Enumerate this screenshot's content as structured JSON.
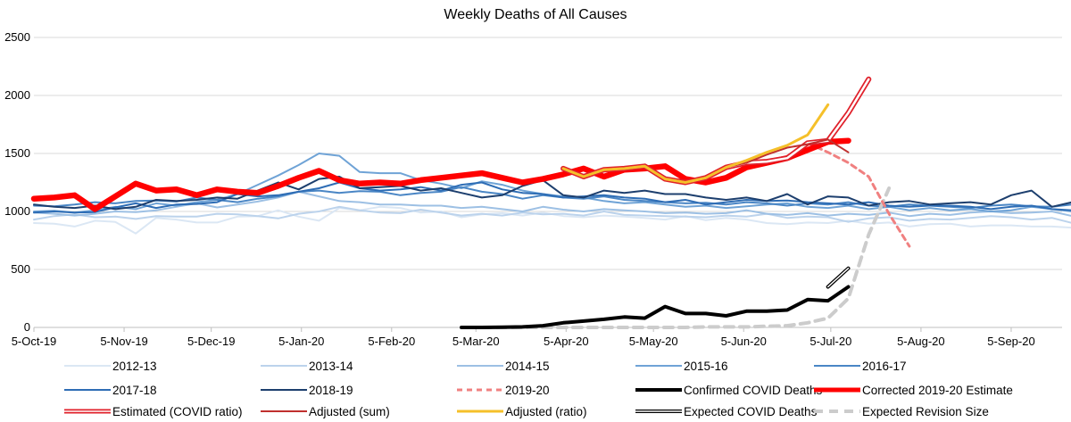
{
  "chart_data": {
    "type": "line",
    "title": "Weekly Deaths of All Causes",
    "xlabel": "",
    "ylabel": "",
    "ylim": [
      0,
      2500
    ],
    "yticks": [
      0,
      500,
      1000,
      1500,
      2000,
      2500
    ],
    "x_tick_labels": [
      "5-Oct-19",
      "5-Nov-19",
      "5-Dec-19",
      "5-Jan-20",
      "5-Feb-20",
      "5-Mar-20",
      "5-Apr-20",
      "5-May-20",
      "5-Jun-20",
      "5-Jul-20",
      "5-Aug-20",
      "5-Sep-20"
    ],
    "x_tick_weeks": [
      0,
      4.43,
      8.71,
      13.14,
      17.57,
      21.71,
      26.14,
      30.43,
      34.86,
      39.14,
      43.57,
      48
    ],
    "grid": "horizontal",
    "legend_position": "bottom",
    "series": [
      {
        "name": "2012-13",
        "color": "#dbe7f4",
        "dash": "solid",
        "width": 2,
        "start_week": 0,
        "values": [
          900,
          895,
          870,
          920,
          910,
          810,
          945,
          930,
          905,
          905,
          955,
          960,
          1010,
          955,
          920,
          1030,
          1010,
          1040,
          1030,
          990,
          1000,
          950,
          975,
          985,
          965,
          990,
          960,
          950,
          965,
          955,
          945,
          930,
          960,
          925,
          945,
          930,
          900,
          890,
          905,
          900,
          920,
          895,
          905,
          870,
          890,
          895,
          870,
          880,
          880,
          870,
          870,
          860
        ]
      },
      {
        "name": "2013-14",
        "color": "#bcd3ec",
        "dash": "solid",
        "width": 2,
        "start_week": 0,
        "values": [
          930,
          960,
          975,
          950,
          955,
          935,
          960,
          955,
          955,
          980,
          975,
          960,
          940,
          980,
          1000,
          1040,
          1010,
          990,
          985,
          1015,
          990,
          965,
          980,
          965,
          990,
          975,
          980,
          965,
          1000,
          970,
          965,
          960,
          955,
          950,
          965,
          955,
          980,
          945,
          955,
          950,
          910,
          940,
          950,
          920,
          935,
          930,
          945,
          960,
          950,
          930,
          945,
          900
        ]
      },
      {
        "name": "2014-15",
        "color": "#9dc0e4",
        "dash": "solid",
        "width": 2,
        "start_week": 0,
        "values": [
          990,
          980,
          965,
          980,
          1000,
          995,
          1010,
          1040,
          1070,
          1035,
          1060,
          1085,
          1120,
          1170,
          1130,
          1090,
          1080,
          1060,
          1060,
          1050,
          1050,
          1030,
          1040,
          1020,
          1000,
          1040,
          1015,
          1000,
          1020,
          1010,
          1000,
          985,
          990,
          980,
          985,
          1010,
          980,
          970,
          985,
          965,
          980,
          970,
          990,
          960,
          980,
          970,
          990,
          1000,
          985,
          990,
          1000,
          960
        ]
      },
      {
        "name": "2015-16",
        "color": "#6fa3d6",
        "dash": "solid",
        "width": 2,
        "start_week": 0,
        "values": [
          1000,
          1005,
          990,
          1010,
          1040,
          1020,
          1070,
          1050,
          1080,
          1100,
          1150,
          1230,
          1310,
          1400,
          1500,
          1480,
          1340,
          1330,
          1330,
          1270,
          1240,
          1200,
          1260,
          1230,
          1180,
          1150,
          1130,
          1120,
          1090,
          1070,
          1080,
          1060,
          1040,
          1050,
          1030,
          1045,
          1060,
          1070,
          1040,
          1030,
          1050,
          1020,
          1040,
          1010,
          1030,
          1010,
          1020,
          1000,
          1010,
          1040,
          1020,
          1000
        ]
      },
      {
        "name": "2016-17",
        "color": "#4a86c5",
        "dash": "solid",
        "width": 2,
        "start_week": 0,
        "values": [
          1050,
          1045,
          1060,
          1080,
          1070,
          1090,
          1095,
          1085,
          1120,
          1100,
          1080,
          1110,
          1130,
          1170,
          1180,
          1160,
          1175,
          1170,
          1140,
          1160,
          1170,
          1210,
          1170,
          1150,
          1110,
          1140,
          1120,
          1110,
          1130,
          1100,
          1090,
          1080,
          1070,
          1075,
          1060,
          1080,
          1070,
          1050,
          1070,
          1060,
          1080,
          1050,
          1040,
          1060,
          1050,
          1040,
          1030,
          1050,
          1060,
          1045,
          1040,
          1060
        ]
      },
      {
        "name": "2017-18",
        "color": "#2e6db5",
        "dash": "solid",
        "width": 2,
        "start_week": 0,
        "values": [
          990,
          1000,
          990,
          995,
          1035,
          1070,
          1030,
          1060,
          1065,
          1080,
          1150,
          1130,
          1140,
          1170,
          1200,
          1250,
          1200,
          1180,
          1190,
          1210,
          1180,
          1230,
          1250,
          1190,
          1160,
          1150,
          1120,
          1130,
          1140,
          1120,
          1110,
          1080,
          1100,
          1060,
          1080,
          1100,
          1090,
          1095,
          1080,
          1070,
          1060,
          1080,
          1050,
          1040,
          1050,
          1050,
          1040,
          1020,
          1040,
          1050,
          1020,
          1010
        ]
      },
      {
        "name": "2018-19",
        "color": "#1d3f6e",
        "dash": "solid",
        "width": 2,
        "start_week": 0,
        "values": [
          1060,
          1040,
          1030,
          1050,
          1020,
          1040,
          1100,
          1090,
          1100,
          1120,
          1110,
          1180,
          1250,
          1190,
          1280,
          1300,
          1200,
          1210,
          1220,
          1180,
          1200,
          1160,
          1120,
          1140,
          1220,
          1270,
          1140,
          1120,
          1180,
          1160,
          1180,
          1150,
          1150,
          1120,
          1100,
          1120,
          1090,
          1150,
          1060,
          1130,
          1120,
          1050,
          1080,
          1090,
          1060,
          1070,
          1080,
          1060,
          1140,
          1180,
          1040,
          1080
        ]
      },
      {
        "name": "2019-20",
        "color": "#f08080",
        "dash": "dash",
        "width": 3,
        "start_week": 38,
        "values": [
          1590,
          1510,
          1420,
          1300,
          980,
          700
        ]
      },
      {
        "name": "Confirmed COVID Deaths",
        "color": "#000000",
        "dash": "solid",
        "width": 4,
        "start_week": 21,
        "values": [
          0,
          0,
          2,
          5,
          15,
          40,
          55,
          70,
          90,
          80,
          180,
          120,
          120,
          100,
          140,
          140,
          150,
          240,
          230,
          350
        ]
      },
      {
        "name": "Corrected 2019-20 Estimate",
        "color": "#ff0000",
        "dash": "solid",
        "width": 6.5,
        "start_week": 0,
        "values": [
          1110,
          1120,
          1140,
          1020,
          1130,
          1240,
          1180,
          1190,
          1140,
          1190,
          1170,
          1160,
          1220,
          1290,
          1350,
          1270,
          1240,
          1250,
          1240,
          1270,
          1290,
          1310,
          1330,
          1290,
          1250,
          1280,
          1320,
          1370,
          1300,
          1360,
          1370,
          1390,
          1280,
          1250,
          1290,
          1380,
          1420,
          1460,
          1530,
          1600,
          1610
        ]
      },
      {
        "name": "Estimated (COVID ratio)",
        "color": "#e0202a",
        "dash": "outline",
        "width": 6,
        "start_week": 26,
        "values": [
          1370,
          1300,
          1360,
          1370,
          1390,
          1280,
          1250,
          1290,
          1380,
          1420,
          1430,
          1460,
          1590,
          1610,
          1850,
          2140
        ]
      },
      {
        "name": "Adjusted (sum)",
        "color": "#c0302e",
        "dash": "solid",
        "width": 2,
        "start_week": 26,
        "values": [
          1370,
          1300,
          1360,
          1370,
          1390,
          1280,
          1250,
          1290,
          1380,
          1420,
          1490,
          1550,
          1580,
          1620,
          1510
        ]
      },
      {
        "name": "Adjusted (ratio)",
        "color": "#f5c02a",
        "dash": "solid",
        "width": 3,
        "start_week": 26,
        "values": [
          1370,
          1300,
          1360,
          1370,
          1390,
          1280,
          1250,
          1290,
          1380,
          1440,
          1510,
          1570,
          1660,
          1920
        ]
      },
      {
        "name": "Expected COVID Deaths",
        "color": "#000000",
        "dash": "outline",
        "width": 4,
        "start_week": 39,
        "values": [
          350,
          510
        ]
      },
      {
        "name": "Expected Revision Size",
        "color": "#cccccc",
        "dash": "dash",
        "width": 4,
        "start_week": 22,
        "values": [
          0,
          0,
          0,
          0,
          0,
          0,
          0,
          0,
          0,
          0,
          0,
          5,
          5,
          5,
          10,
          15,
          40,
          80,
          250,
          800,
          1200
        ]
      }
    ]
  }
}
